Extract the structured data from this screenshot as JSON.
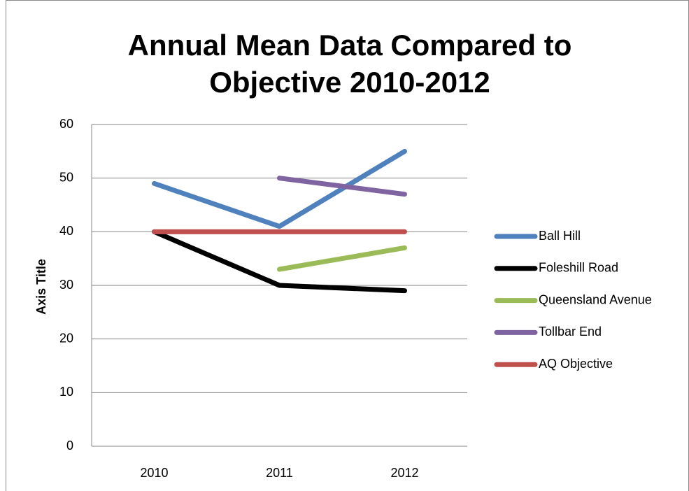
{
  "chart_data": {
    "type": "line",
    "title": "Annual Mean Data Compared to Objective 2010-2012",
    "y_label": "Axis Title",
    "categories": [
      "2010",
      "2011",
      "2012"
    ],
    "series": [
      {
        "name": "Ball Hill",
        "color": "#4f81bd",
        "values": [
          49,
          41,
          55
        ]
      },
      {
        "name": "Foleshill Road",
        "color": "#000000",
        "values": [
          40,
          30,
          29
        ]
      },
      {
        "name": "Queensland Avenue",
        "color": "#9bbb59",
        "values": [
          null,
          33,
          37
        ]
      },
      {
        "name": "Tollbar End",
        "color": "#8064a2",
        "values": [
          null,
          50,
          47
        ]
      },
      {
        "name": "AQ Objective",
        "color": "#c0504d",
        "values": [
          40,
          40,
          40
        ]
      }
    ],
    "ylim": [
      0,
      60
    ],
    "yticks": [
      0,
      10,
      20,
      30,
      40,
      50,
      60
    ],
    "grid": true,
    "legend": "right"
  }
}
